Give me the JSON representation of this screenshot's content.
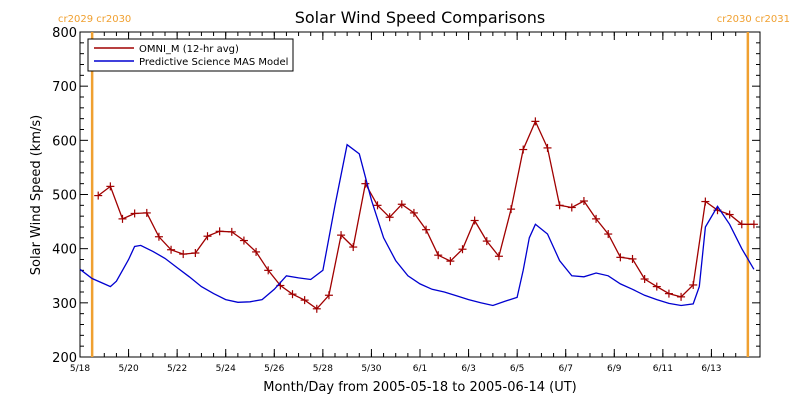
{
  "chart_data": {
    "type": "line",
    "title": "Solar Wind Speed Comparisons",
    "xlabel": "Month/Day from 2005-05-18 to 2005-06-14 (UT)",
    "ylabel": "Solar Wind Speed (km/s)",
    "xlim": [
      "2005-05-18",
      "2005-06-14"
    ],
    "ylim": [
      200,
      800
    ],
    "y_ticks": [
      200,
      300,
      400,
      500,
      600,
      700,
      800
    ],
    "x_ticks": [
      {
        "date": "2005-05-18",
        "label": "5/18"
      },
      {
        "date": "2005-05-20",
        "label": "5/20"
      },
      {
        "date": "2005-05-22",
        "label": "5/22"
      },
      {
        "date": "2005-05-24",
        "label": "5/24"
      },
      {
        "date": "2005-05-26",
        "label": "5/26"
      },
      {
        "date": "2005-05-28",
        "label": "5/28"
      },
      {
        "date": "2005-05-30",
        "label": "5/30"
      },
      {
        "date": "2005-06-01",
        "label": "6/1"
      },
      {
        "date": "2005-06-03",
        "label": "6/3"
      },
      {
        "date": "2005-06-05",
        "label": "6/5"
      },
      {
        "date": "2005-06-07",
        "label": "6/7"
      },
      {
        "date": "2005-06-09",
        "label": "6/9"
      },
      {
        "date": "2005-06-11",
        "label": "6/11"
      },
      {
        "date": "2005-06-13",
        "label": "6/13"
      }
    ],
    "legend": {
      "placement": "top-left",
      "box": true
    },
    "colors": {
      "omni": "#a00000",
      "model": "#0000d0",
      "boundary": "#f0a030"
    },
    "carrington_markers": [
      {
        "date": "2005-05-18 12:00",
        "labels": [
          "cr2029",
          "cr2030"
        ]
      },
      {
        "date": "2005-06-14 12:00",
        "labels": [
          "cr2030",
          "cr2031"
        ]
      }
    ],
    "series": [
      {
        "name": "OMNI_M (12-hr avg)",
        "color": "#a00000",
        "marker": "plus",
        "points": [
          [
            "2005-05-18 18:00",
            498
          ],
          [
            "2005-05-19 06:00",
            515
          ],
          [
            "2005-05-19 18:00",
            455
          ],
          [
            "2005-05-20 06:00",
            465
          ],
          [
            "2005-05-20 18:00",
            466
          ],
          [
            "2005-05-21 06:00",
            422
          ],
          [
            "2005-05-21 18:00",
            398
          ],
          [
            "2005-05-22 06:00",
            390
          ],
          [
            "2005-05-22 18:00",
            392
          ],
          [
            "2005-05-23 06:00",
            423
          ],
          [
            "2005-05-23 18:00",
            432
          ],
          [
            "2005-05-24 06:00",
            431
          ],
          [
            "2005-05-24 18:00",
            415
          ],
          [
            "2005-05-25 06:00",
            394
          ],
          [
            "2005-05-25 18:00",
            360
          ],
          [
            "2005-05-26 06:00",
            332
          ],
          [
            "2005-05-26 18:00",
            316
          ],
          [
            "2005-05-27 06:00",
            305
          ],
          [
            "2005-05-27 18:00",
            289
          ],
          [
            "2005-05-28 06:00",
            314
          ],
          [
            "2005-05-28 18:00",
            425
          ],
          [
            "2005-05-29 06:00",
            403
          ],
          [
            "2005-05-29 18:00",
            520
          ],
          [
            "2005-05-30 06:00",
            480
          ],
          [
            "2005-05-30 18:00",
            458
          ],
          [
            "2005-05-31 06:00",
            482
          ],
          [
            "2005-05-31 18:00",
            466
          ],
          [
            "2005-06-01 06:00",
            435
          ],
          [
            "2005-06-01 18:00",
            388
          ],
          [
            "2005-06-02 06:00",
            377
          ],
          [
            "2005-06-02 18:00",
            399
          ],
          [
            "2005-06-03 06:00",
            452
          ],
          [
            "2005-06-03 18:00",
            414
          ],
          [
            "2005-06-04 06:00",
            386
          ],
          [
            "2005-06-04 18:00",
            473
          ],
          [
            "2005-06-05 06:00",
            583
          ],
          [
            "2005-06-05 18:00",
            635
          ],
          [
            "2005-06-06 06:00",
            586
          ],
          [
            "2005-06-06 18:00",
            480
          ],
          [
            "2005-06-07 06:00",
            476
          ],
          [
            "2005-06-07 18:00",
            488
          ],
          [
            "2005-06-08 06:00",
            455
          ],
          [
            "2005-06-08 18:00",
            427
          ],
          [
            "2005-06-09 06:00",
            384
          ],
          [
            "2005-06-09 18:00",
            381
          ],
          [
            "2005-06-10 06:00",
            344
          ],
          [
            "2005-06-10 18:00",
            330
          ],
          [
            "2005-06-11 06:00",
            317
          ],
          [
            "2005-06-11 18:00",
            311
          ],
          [
            "2005-06-12 06:00",
            333
          ],
          [
            "2005-06-12 18:00",
            487
          ],
          [
            "2005-06-13 06:00",
            471
          ],
          [
            "2005-06-13 18:00",
            463
          ],
          [
            "2005-06-14 06:00",
            445
          ],
          [
            "2005-06-14 18:00",
            445
          ]
        ]
      },
      {
        "name": "Predictive Science MAS Model",
        "color": "#0000d0",
        "marker": "none",
        "points": [
          [
            "2005-05-18 00:00",
            362
          ],
          [
            "2005-05-18 12:00",
            345
          ],
          [
            "2005-05-19 00:00",
            335
          ],
          [
            "2005-05-19 06:00",
            330
          ],
          [
            "2005-05-19 12:00",
            340
          ],
          [
            "2005-05-20 00:00",
            380
          ],
          [
            "2005-05-20 06:00",
            404
          ],
          [
            "2005-05-20 12:00",
            406
          ],
          [
            "2005-05-21 00:00",
            395
          ],
          [
            "2005-05-21 12:00",
            382
          ],
          [
            "2005-05-22 00:00",
            365
          ],
          [
            "2005-05-22 12:00",
            348
          ],
          [
            "2005-05-23 00:00",
            330
          ],
          [
            "2005-05-23 12:00",
            317
          ],
          [
            "2005-05-24 00:00",
            306
          ],
          [
            "2005-05-24 12:00",
            301
          ],
          [
            "2005-05-25 00:00",
            302
          ],
          [
            "2005-05-25 12:00",
            306
          ],
          [
            "2005-05-26 00:00",
            325
          ],
          [
            "2005-05-26 12:00",
            350
          ],
          [
            "2005-05-27 00:00",
            346
          ],
          [
            "2005-05-27 12:00",
            343
          ],
          [
            "2005-05-28 00:00",
            360
          ],
          [
            "2005-05-28 12:00",
            480
          ],
          [
            "2005-05-29 00:00",
            592
          ],
          [
            "2005-05-29 12:00",
            575
          ],
          [
            "2005-05-30 00:00",
            490
          ],
          [
            "2005-05-30 12:00",
            420
          ],
          [
            "2005-05-31 00:00",
            378
          ],
          [
            "2005-05-31 12:00",
            350
          ],
          [
            "2005-06-01 00:00",
            335
          ],
          [
            "2005-06-01 12:00",
            325
          ],
          [
            "2005-06-02 00:00",
            320
          ],
          [
            "2005-06-02 12:00",
            313
          ],
          [
            "2005-06-03 00:00",
            306
          ],
          [
            "2005-06-03 12:00",
            300
          ],
          [
            "2005-06-04 00:00",
            295
          ],
          [
            "2005-06-04 12:00",
            303
          ],
          [
            "2005-06-05 00:00",
            310
          ],
          [
            "2005-06-05 06:00",
            360
          ],
          [
            "2005-06-05 12:00",
            420
          ],
          [
            "2005-06-05 18:00",
            445
          ],
          [
            "2005-06-06 06:00",
            427
          ],
          [
            "2005-06-06 18:00",
            378
          ],
          [
            "2005-06-07 06:00",
            350
          ],
          [
            "2005-06-07 18:00",
            348
          ],
          [
            "2005-06-08 06:00",
            355
          ],
          [
            "2005-06-08 18:00",
            350
          ],
          [
            "2005-06-09 06:00",
            335
          ],
          [
            "2005-06-09 18:00",
            325
          ],
          [
            "2005-06-10 06:00",
            314
          ],
          [
            "2005-06-10 18:00",
            306
          ],
          [
            "2005-06-11 06:00",
            299
          ],
          [
            "2005-06-11 18:00",
            295
          ],
          [
            "2005-06-12 06:00",
            298
          ],
          [
            "2005-06-12 12:00",
            330
          ],
          [
            "2005-06-12 18:00",
            440
          ],
          [
            "2005-06-13 06:00",
            478
          ],
          [
            "2005-06-13 18:00",
            445
          ],
          [
            "2005-06-14 06:00",
            400
          ],
          [
            "2005-06-14 18:00",
            362
          ]
        ]
      }
    ]
  }
}
